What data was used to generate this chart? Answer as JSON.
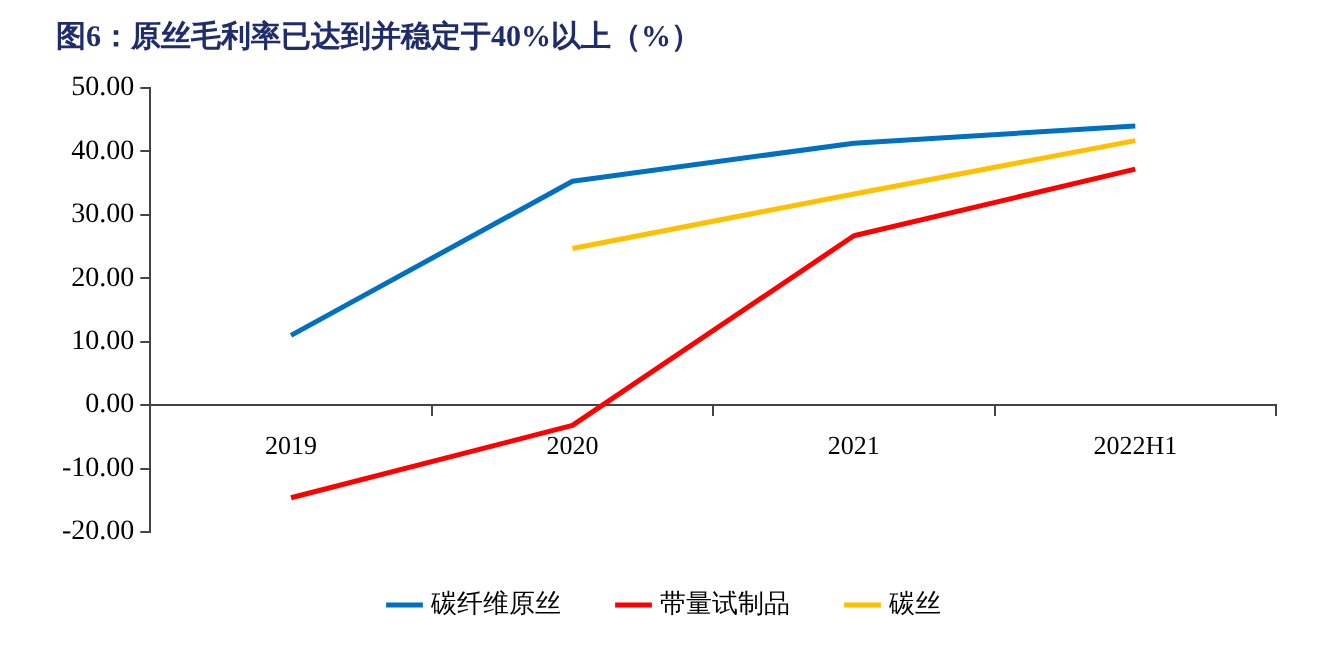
{
  "chart_data": {
    "type": "line",
    "title": "图6：原丝毛利率已达到并稳定于40%以上（%）",
    "categories": [
      "2019",
      "2020",
      "2021",
      "2022H1"
    ],
    "series": [
      {
        "name": "碳纤维原丝",
        "color": "#0070c0",
        "values": [
          11,
          35.3,
          41.3,
          44
        ]
      },
      {
        "name": "带量试制品",
        "color": "#ff0000",
        "values": [
          -14.6,
          -3.2,
          26.7,
          37.2
        ]
      },
      {
        "name": "碳丝",
        "color": "#ffc000",
        "values": [
          null,
          24.7,
          33.3,
          41.7
        ]
      }
    ],
    "ylim": [
      -20,
      50
    ],
    "yticks": [
      {
        "value": -20,
        "label": "-20.00"
      },
      {
        "value": -10,
        "label": "-10.00"
      },
      {
        "value": 0,
        "label": "0.00"
      },
      {
        "value": 10,
        "label": "10.00"
      },
      {
        "value": 20,
        "label": "20.00"
      },
      {
        "value": 30,
        "label": "30.00"
      },
      {
        "value": 40,
        "label": "40.00"
      },
      {
        "value": 50,
        "label": "50.00"
      }
    ],
    "grid": false,
    "legend": "bottom",
    "marker": "none",
    "line_style": "solid"
  }
}
